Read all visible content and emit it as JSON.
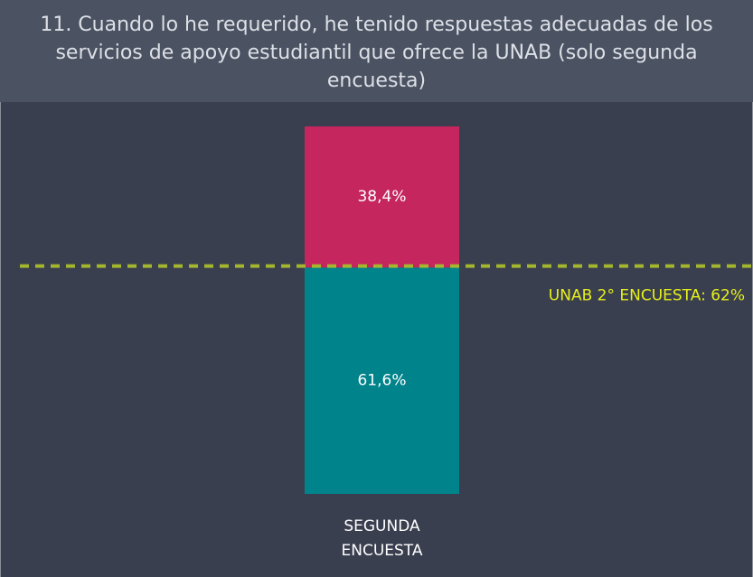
{
  "chart_data": {
    "type": "stacked_bar",
    "title": "11. Cuando lo he requerido, he tenido respuestas adecuadas de los servicios de apoyo estudiantil que ofrece la UNAB (solo segunda encuesta)",
    "categories": [
      "SEGUNDA ENCUESTA"
    ],
    "series": [
      {
        "color": "#00838a",
        "values": [
          61.6
        ],
        "value_labels": [
          "61,6%"
        ]
      },
      {
        "color": "#c4265d",
        "values": [
          38.4
        ],
        "value_labels": [
          "38,4%"
        ]
      }
    ],
    "ylim": [
      0,
      100
    ],
    "reference_line": {
      "value": 62,
      "label": "UNAB 2° ENCUESTA: 62%",
      "color": "#a4b52e"
    }
  }
}
